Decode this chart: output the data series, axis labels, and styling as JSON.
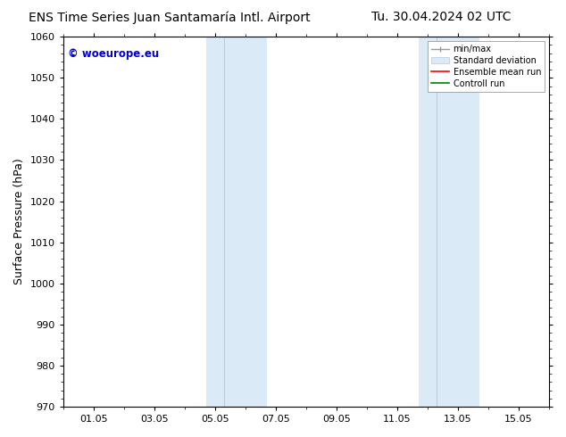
{
  "title_left": "ENS Time Series Juan Santamaría Intl. Airport",
  "title_right": "Tu. 30.04.2024 02 UTC",
  "ylabel": "Surface Pressure (hPa)",
  "ylim": [
    970,
    1060
  ],
  "yticks": [
    970,
    980,
    990,
    1000,
    1010,
    1020,
    1030,
    1040,
    1050,
    1060
  ],
  "xtick_labels": [
    "01.05",
    "03.05",
    "05.05",
    "07.05",
    "09.05",
    "11.05",
    "13.05",
    "15.05"
  ],
  "xtick_positions": [
    0,
    2,
    4,
    6,
    8,
    10,
    12,
    14
  ],
  "xmin": -1,
  "xmax": 15,
  "shaded_regions": [
    {
      "xmin": 3.7,
      "xmax": 4.3,
      "color": "#daeaf7"
    },
    {
      "xmin": 4.3,
      "xmax": 5.7,
      "color": "#daeaf7"
    },
    {
      "xmin": 10.7,
      "xmax": 11.3,
      "color": "#daeaf7"
    },
    {
      "xmin": 11.3,
      "xmax": 12.7,
      "color": "#daeaf7"
    }
  ],
  "shaded_bands": [
    {
      "xmin": 3.7,
      "xmax": 5.7
    },
    {
      "xmin": 10.7,
      "xmax": 12.7
    }
  ],
  "dividers": [
    4.3,
    11.3
  ],
  "watermark_text": "© woeurope.eu",
  "watermark_color": "#0000cc",
  "bg_color": "#ffffff",
  "plot_bg_color": "#ffffff",
  "title_fontsize": 10,
  "axis_fontsize": 9,
  "tick_fontsize": 8,
  "legend_fontsize": 7,
  "shade_color": "#daeaf7",
  "divider_color": "#b0cce0"
}
